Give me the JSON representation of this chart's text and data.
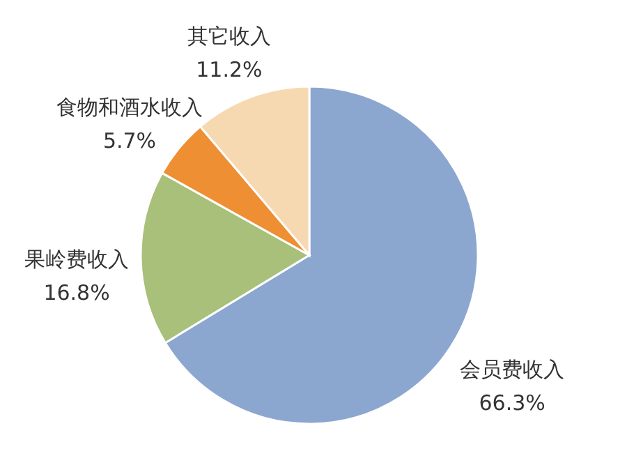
{
  "chart_data": {
    "type": "pie",
    "categories": [
      "会员费收入",
      "果岭费收入",
      "食物和酒水收入",
      "其它收入"
    ],
    "values": [
      66.3,
      16.8,
      5.7,
      11.2
    ],
    "colors": [
      "#8ca7cf",
      "#a8c07a",
      "#ee8f34",
      "#f7d9b1"
    ],
    "value_labels": [
      "66.3%",
      "16.8%",
      "5.7%",
      "11.2%"
    ]
  }
}
